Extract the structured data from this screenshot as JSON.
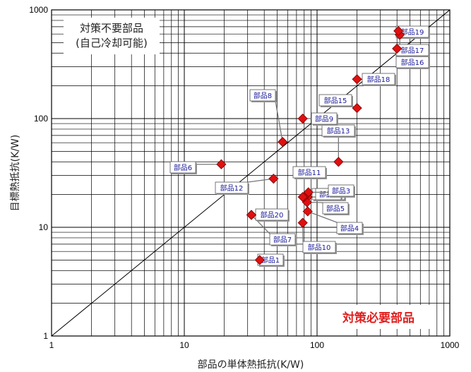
{
  "chart_data": {
    "type": "scatter",
    "x_scale": "log",
    "y_scale": "log",
    "xlim": [
      1,
      1000
    ],
    "ylim": [
      1,
      1000
    ],
    "grid": true,
    "xlabel": "部品の単体熱抵抗(K/W)",
    "ylabel": "目標熱抵抗(K/W)",
    "x_ticks": [
      "1",
      "10",
      "100",
      "1000"
    ],
    "y_ticks": [
      "1",
      "10",
      "100",
      "1000"
    ],
    "reference_line": "y = x",
    "marker_color": "#e01010",
    "annotations": {
      "upper_left": [
        "対策不要部品",
        "(自己冷却可能)"
      ],
      "lower_right": "対策必要部品"
    },
    "points": [
      {
        "label": "部品1",
        "x": 37,
        "y": 5
      },
      {
        "label": "部品2",
        "x": 85,
        "y": 19
      },
      {
        "label": "部品3",
        "x": 86,
        "y": 21
      },
      {
        "label": "部品4",
        "x": 85,
        "y": 14
      },
      {
        "label": "部品5",
        "x": 84,
        "y": 17
      },
      {
        "label": "部品6",
        "x": 19,
        "y": 38
      },
      {
        "label": "部品7",
        "x": 32,
        "y": 13
      },
      {
        "label": "部品8",
        "x": 55,
        "y": 61
      },
      {
        "label": "部品9",
        "x": 78,
        "y": 100
      },
      {
        "label": "部品10",
        "x": 78,
        "y": 11
      },
      {
        "label": "部品11",
        "x": 80,
        "y": 19
      },
      {
        "label": "部品12",
        "x": 47,
        "y": 28
      },
      {
        "label": "部品13",
        "x": 145,
        "y": 40
      },
      {
        "label": "部品14",
        "x": 78,
        "y": 19
      },
      {
        "label": "部品15",
        "x": 200,
        "y": 125
      },
      {
        "label": "部品16",
        "x": 420,
        "y": 590
      },
      {
        "label": "部品17",
        "x": 400,
        "y": 440
      },
      {
        "label": "部品18",
        "x": 200,
        "y": 230
      },
      {
        "label": "部品19",
        "x": 410,
        "y": 640
      },
      {
        "label": "部品20",
        "x": 32,
        "y": 13
      }
    ]
  }
}
